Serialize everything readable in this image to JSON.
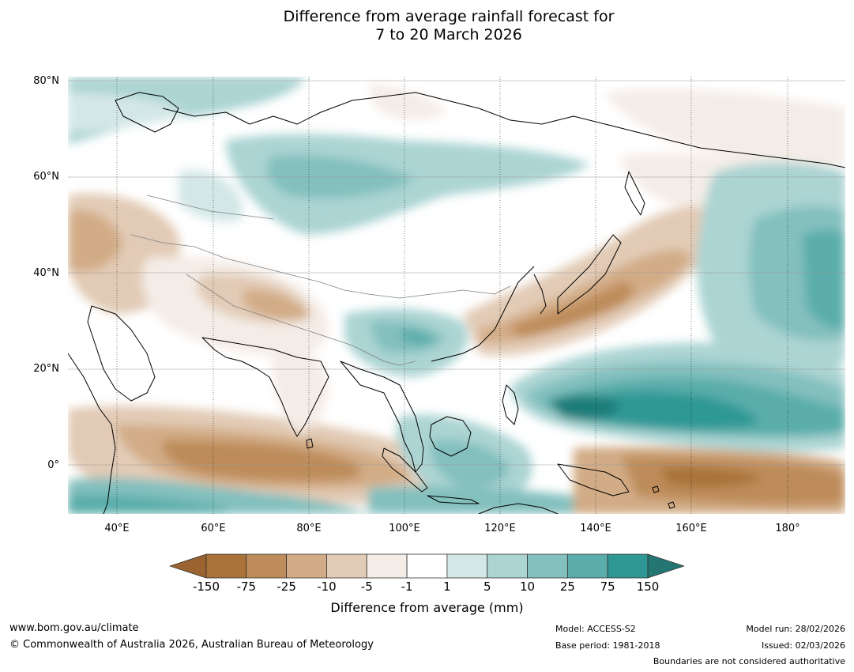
{
  "title_line1": "Difference from average rainfall forecast for",
  "title_line2": "7 to 20 March 2026",
  "lat_labels": [
    "80°N",
    "60°N",
    "40°N",
    "20°N",
    "0°"
  ],
  "lon_labels": [
    "40°E",
    "60°E",
    "80°E",
    "100°E",
    "120°E",
    "140°E",
    "160°E",
    "180°"
  ],
  "colorbar": {
    "ticks": [
      "-150",
      "-75",
      "-25",
      "-10",
      "-5",
      "-1",
      "1",
      "5",
      "10",
      "25",
      "75",
      "150"
    ],
    "colors": [
      "#a87238",
      "#be8c5a",
      "#d2ac86",
      "#e2cbb6",
      "#f4ece6",
      "#ffffff",
      "#d3e7e6",
      "#abd4d3",
      "#83c0be",
      "#5aadab",
      "#2f9894",
      "#1f7d79"
    ],
    "low_extend_color": "#9a6330",
    "high_extend_color": "#237672",
    "label": "Difference from average (mm)"
  },
  "footer": {
    "url": "www.bom.gov.au/climate",
    "copyright": "© Commonwealth of Australia 2026, Australian Bureau of Meteorology",
    "model": "Model: ACCESS-S2",
    "base_period": "Base period: 1981-2018",
    "model_run": "Model run: 28/02/2026",
    "issued": "Issued: 02/03/2026",
    "disclaimer": "Boundaries are not considered authoritative"
  }
}
